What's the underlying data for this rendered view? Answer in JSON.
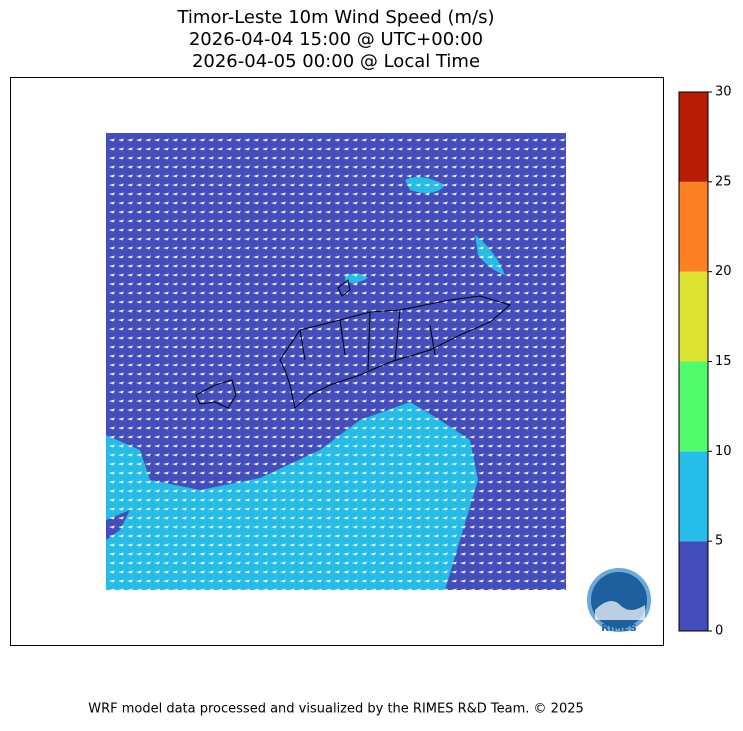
{
  "title": [
    "Timor-Leste 10m Wind Speed (m/s)",
    "2026-04-04 15:00 @ UTC+00:00",
    "2026-04-05 00:00 @ Local Time"
  ],
  "colorbar": {
    "ticks": [
      0,
      5,
      10,
      15,
      20,
      25,
      30
    ],
    "colors": [
      "#434bbd",
      "#26bde8",
      "#52fb6c",
      "#dbe232",
      "#fd8022",
      "#b71c05"
    ]
  },
  "logo_text": "RIMES",
  "footer": "WRF model data processed and visualized by the RIMES R&D Team. © 2025"
}
